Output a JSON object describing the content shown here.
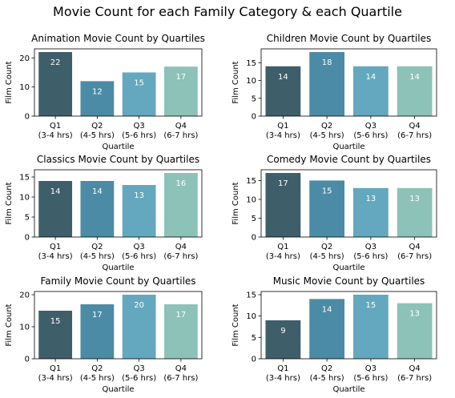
{
  "figure_title": "Movie Count for each Family Category & each Quartile",
  "colors": [
    "#3e5e69",
    "#4b8ba5",
    "#63a8bf",
    "#8cc2b8"
  ],
  "chart_data": [
    {
      "type": "bar",
      "title": "Animation Movie Count by Quartiles",
      "xlabel": "Quartile",
      "ylabel": "Film Count",
      "categories": [
        [
          "Q1",
          "(3-4 hrs)"
        ],
        [
          "Q2",
          "(4-5 hrs)"
        ],
        [
          "Q3",
          "(5-6 hrs)"
        ],
        [
          "Q4",
          "(6-7 hrs)"
        ]
      ],
      "values": [
        22,
        12,
        15,
        17
      ],
      "ylim": [
        0,
        23.1
      ],
      "yticks": [
        0,
        10,
        20
      ]
    },
    {
      "type": "bar",
      "title": "Children Movie Count by Quartiles",
      "xlabel": "Quartile",
      "ylabel": "Film Count",
      "categories": [
        [
          "Q1",
          "(3-4 hrs)"
        ],
        [
          "Q2",
          "(4-5 hrs)"
        ],
        [
          "Q3",
          "(5-6 hrs)"
        ],
        [
          "Q4",
          "(6-7 hrs)"
        ]
      ],
      "values": [
        14,
        18,
        14,
        14
      ],
      "ylim": [
        0,
        18.9
      ],
      "yticks": [
        0,
        5,
        10,
        15
      ]
    },
    {
      "type": "bar",
      "title": "Classics Movie Count by Quartiles",
      "xlabel": "Quartile",
      "ylabel": "Film Count",
      "categories": [
        [
          "Q1",
          "(3-4 hrs)"
        ],
        [
          "Q2",
          "(4-5 hrs)"
        ],
        [
          "Q3",
          "(5-6 hrs)"
        ],
        [
          "Q4",
          "(6-7 hrs)"
        ]
      ],
      "values": [
        14,
        14,
        13,
        16
      ],
      "ylim": [
        0,
        16.8
      ],
      "yticks": [
        0,
        5,
        10,
        15
      ]
    },
    {
      "type": "bar",
      "title": "Comedy Movie Count by Quartiles",
      "xlabel": "Quartile",
      "ylabel": "Film Count",
      "categories": [
        [
          "Q1",
          "(3-4 hrs)"
        ],
        [
          "Q2",
          "(4-5 hrs)"
        ],
        [
          "Q3",
          "(5-6 hrs)"
        ],
        [
          "Q4",
          "(6-7 hrs)"
        ]
      ],
      "values": [
        17,
        15,
        13,
        13
      ],
      "ylim": [
        0,
        17.85
      ],
      "yticks": [
        0,
        5,
        10,
        15
      ]
    },
    {
      "type": "bar",
      "title": "Family Movie Count by Quartiles",
      "xlabel": "Quartile",
      "ylabel": "Film Count",
      "categories": [
        [
          "Q1",
          "(3-4 hrs)"
        ],
        [
          "Q2",
          "(4-5 hrs)"
        ],
        [
          "Q3",
          "(5-6 hrs)"
        ],
        [
          "Q4",
          "(6-7 hrs)"
        ]
      ],
      "values": [
        15,
        17,
        20,
        17
      ],
      "ylim": [
        0,
        21
      ],
      "yticks": [
        0,
        10,
        20
      ]
    },
    {
      "type": "bar",
      "title": "Music Movie Count by Quartiles",
      "xlabel": "Quartile",
      "ylabel": "Film Count",
      "categories": [
        [
          "Q1",
          "(3-4 hrs)"
        ],
        [
          "Q2",
          "(4-5 hrs)"
        ],
        [
          "Q3",
          "(5-6 hrs)"
        ],
        [
          "Q4",
          "(6-7 hrs)"
        ]
      ],
      "values": [
        9,
        14,
        15,
        13
      ],
      "ylim": [
        0,
        15.75
      ],
      "yticks": [
        0,
        5,
        10,
        15
      ]
    }
  ]
}
